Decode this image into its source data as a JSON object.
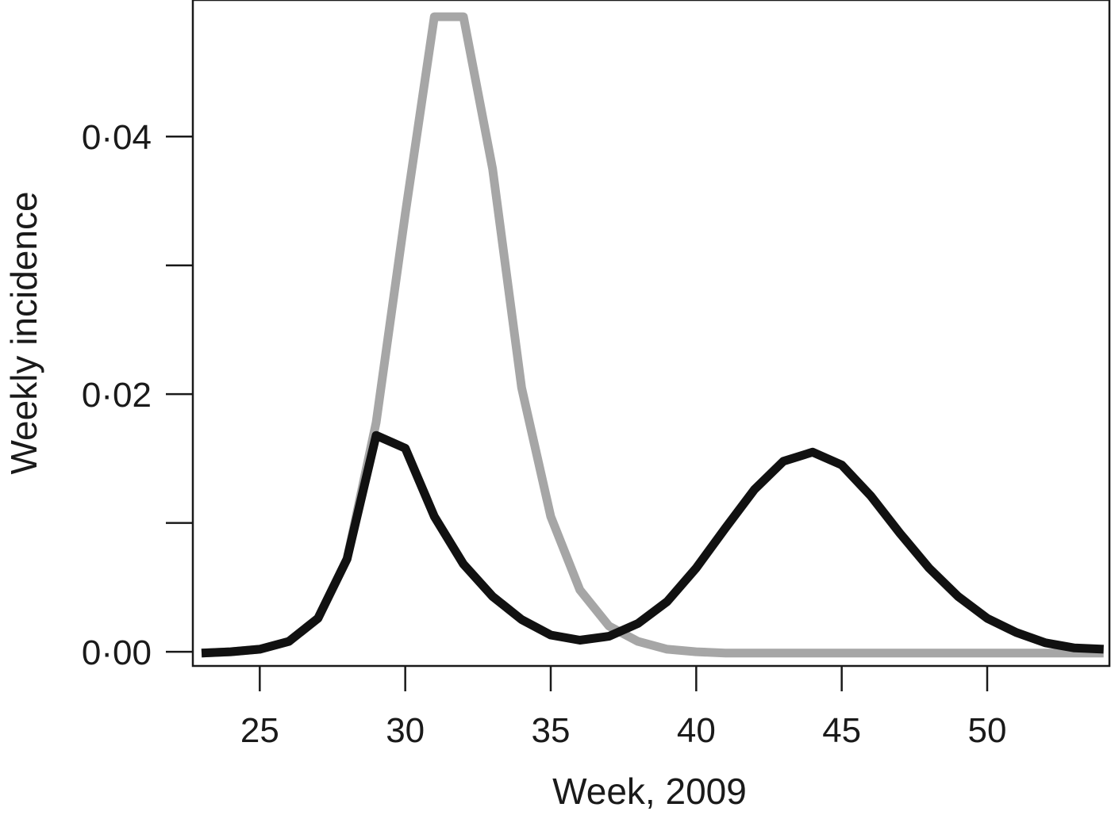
{
  "chart_data": {
    "type": "line",
    "title": "",
    "xlabel": "Week, 2009",
    "ylabel": "Weekly incidence",
    "xlim": [
      22.7,
      54.2
    ],
    "ylim": [
      -0.0011,
      0.0506
    ],
    "x_ticks": [
      25,
      30,
      35,
      40,
      45,
      50
    ],
    "x_tick_labels": [
      "25",
      "30",
      "35",
      "40",
      "45",
      "50"
    ],
    "y_ticks": [
      0.0,
      0.01,
      0.02,
      0.03,
      0.04
    ],
    "y_tick_labels": [
      "0·00",
      "",
      "0·02",
      "",
      "0·04"
    ],
    "grid": false,
    "legend": "none",
    "series": [
      {
        "color": "#a6a6a6",
        "points": [
          [
            23,
            -0.0001
          ],
          [
            24,
            0.0
          ],
          [
            25,
            0.0002
          ],
          [
            26,
            0.0008
          ],
          [
            27,
            0.0026
          ],
          [
            28,
            0.0072
          ],
          [
            29,
            0.0178
          ],
          [
            30,
            0.034
          ],
          [
            31,
            0.0493
          ],
          [
            32,
            0.0493
          ],
          [
            33,
            0.0375
          ],
          [
            34,
            0.0205
          ],
          [
            35,
            0.0105
          ],
          [
            36,
            0.0048
          ],
          [
            37,
            0.002
          ],
          [
            38,
            0.0008
          ],
          [
            39,
            0.0002
          ],
          [
            40,
            0.0
          ],
          [
            41,
            -0.0001
          ],
          [
            42,
            -0.0001
          ],
          [
            43,
            -0.0001
          ],
          [
            44,
            -0.0001
          ],
          [
            45,
            -0.0001
          ],
          [
            46,
            -0.0001
          ],
          [
            47,
            -0.0001
          ],
          [
            48,
            -0.0001
          ],
          [
            49,
            -0.0001
          ],
          [
            50,
            -0.0001
          ],
          [
            51,
            -0.0001
          ],
          [
            52,
            -0.0001
          ],
          [
            53,
            -0.0001
          ],
          [
            54,
            -0.0001
          ]
        ]
      },
      {
        "color": "#111111",
        "points": [
          [
            23,
            -0.0001
          ],
          [
            24,
            0.0
          ],
          [
            25,
            0.0002
          ],
          [
            26,
            0.0008
          ],
          [
            27,
            0.0026
          ],
          [
            28,
            0.0072
          ],
          [
            29,
            0.0168
          ],
          [
            30,
            0.0158
          ],
          [
            31,
            0.0105
          ],
          [
            32,
            0.0068
          ],
          [
            33,
            0.0043
          ],
          [
            34,
            0.0025
          ],
          [
            35,
            0.0013
          ],
          [
            36,
            0.0009
          ],
          [
            37,
            0.0012
          ],
          [
            38,
            0.0022
          ],
          [
            39,
            0.0039
          ],
          [
            40,
            0.0065
          ],
          [
            41,
            0.0096
          ],
          [
            42,
            0.0126
          ],
          [
            43,
            0.0148
          ],
          [
            44,
            0.0155
          ],
          [
            45,
            0.0145
          ],
          [
            46,
            0.0121
          ],
          [
            47,
            0.0092
          ],
          [
            48,
            0.0065
          ],
          [
            49,
            0.0043
          ],
          [
            50,
            0.0026
          ],
          [
            51,
            0.0015
          ],
          [
            52,
            0.0007
          ],
          [
            53,
            0.0003
          ],
          [
            54,
            0.0002
          ]
        ]
      }
    ]
  }
}
